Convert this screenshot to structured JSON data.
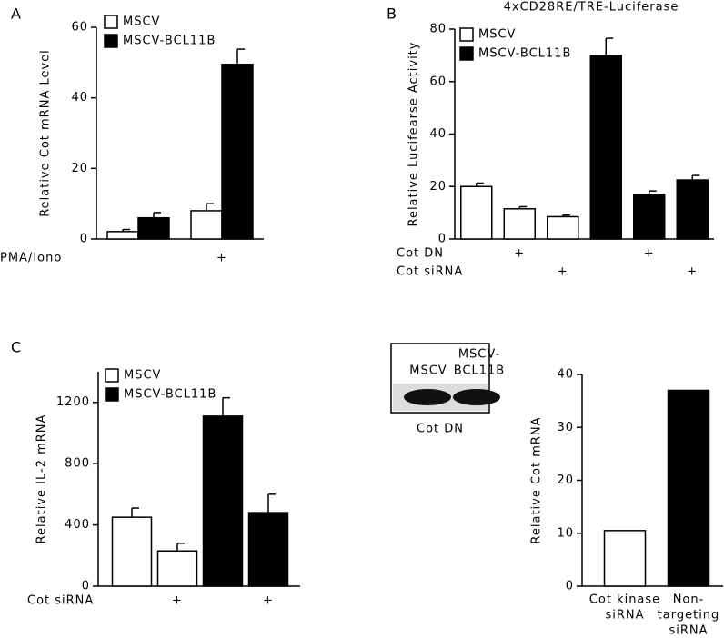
{
  "chart_data": [
    {
      "panel": "A",
      "type": "bar",
      "ylabel": "Relative Cot mRNA Level",
      "ylim": [
        0,
        60
      ],
      "yticks": [
        0,
        20,
        40,
        60
      ],
      "categories": [
        null,
        null
      ],
      "series": [
        {
          "name": "MSCV",
          "color": "#ffffff",
          "values": [
            2.1,
            8
          ],
          "errors": [
            0.6,
            2
          ]
        },
        {
          "name": "MSCV-BCL11B",
          "color": "#000000",
          "values": [
            6,
            49.5
          ],
          "errors": [
            1.5,
            4.3
          ]
        }
      ],
      "rows": [
        {
          "label": "PMA/Iono",
          "marks": [
            null,
            "+"
          ]
        }
      ]
    },
    {
      "panel": "B",
      "type": "bar",
      "title": "4xCD28RE/TRE-Luciferase",
      "ylabel": "Relative Lucifearse Activity",
      "ylim": [
        0,
        80
      ],
      "yticks": [
        0,
        20,
        40,
        60,
        80
      ],
      "categories": [
        null,
        null,
        null,
        null,
        null,
        null
      ],
      "series": [
        {
          "name": "MSCV",
          "color": "#ffffff",
          "values": [
            20,
            11.5,
            8.5,
            null,
            null,
            null
          ],
          "errors": [
            1.3,
            0.8,
            0.6,
            null,
            null,
            null
          ]
        },
        {
          "name": "MSCV-BCL11B",
          "color": "#000000",
          "values": [
            null,
            null,
            null,
            70,
            17,
            22.5
          ],
          "errors": [
            null,
            null,
            null,
            6.5,
            1.3,
            1.7
          ]
        }
      ],
      "rows": [
        {
          "label": "Cot DN",
          "marks": [
            null,
            "+",
            null,
            null,
            "+",
            null
          ]
        },
        {
          "label": "Cot siRNA",
          "marks": [
            null,
            null,
            "+",
            null,
            null,
            "+"
          ]
        }
      ]
    },
    {
      "panel": "C",
      "type": "bar",
      "ylabel": "Relative IL-2 mRNA",
      "ylim": [
        0,
        1400
      ],
      "yticks": [
        0,
        400,
        800,
        1200
      ],
      "categories": [
        null,
        null,
        null,
        null
      ],
      "series": [
        {
          "name": "MSCV",
          "color": "#ffffff",
          "values": [
            450,
            230,
            null,
            null
          ],
          "errors": [
            60,
            50,
            null,
            null
          ]
        },
        {
          "name": "MSCV-BCL11B",
          "color": "#000000",
          "values": [
            null,
            null,
            1110,
            480
          ],
          "errors": [
            null,
            null,
            120,
            120
          ]
        }
      ],
      "rows": [
        {
          "label": "Cot siRNA",
          "marks": [
            null,
            "+",
            null,
            "+"
          ]
        }
      ]
    },
    {
      "type": "bar",
      "ylabel": "Relative Cot mRNA",
      "ylim": [
        0,
        40
      ],
      "yticks": [
        0,
        10,
        20,
        30,
        40
      ],
      "categories": [
        [
          "Cot kinase",
          "siRNA"
        ],
        [
          "Non-",
          "targeting",
          "siRNA"
        ]
      ],
      "values": [
        10.5,
        37
      ],
      "colors": [
        "#ffffff",
        "#000000"
      ]
    }
  ],
  "blot": {
    "lanes": [
      [
        "MSCV"
      ],
      [
        "MSCV-",
        "BCL11B"
      ]
    ],
    "caption": "Cot DN"
  }
}
